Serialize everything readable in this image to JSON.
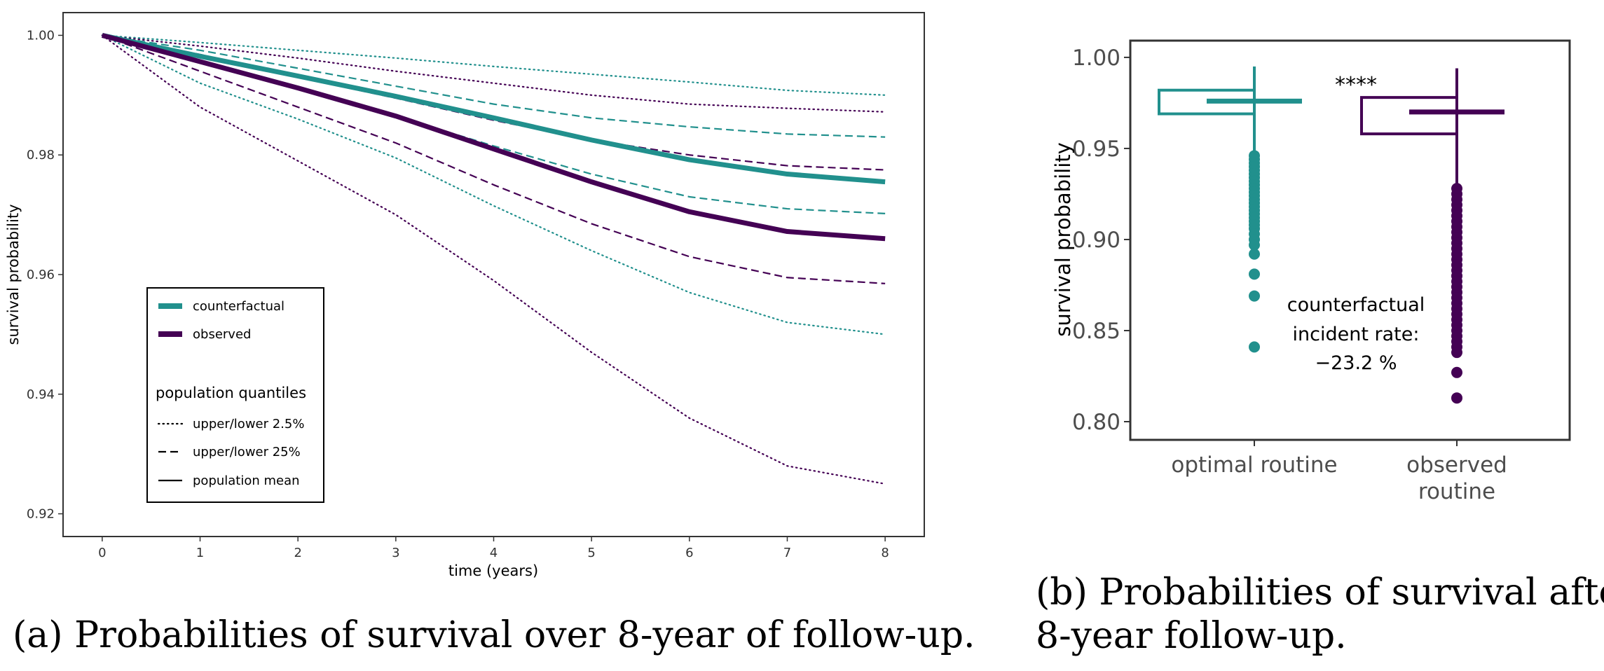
{
  "colors": {
    "counterfactual": "#21908d",
    "observed": "#440154",
    "frame": "#333333",
    "text": "#000000"
  },
  "panel_a": {
    "caption": "(a) Probabilities of survival over 8-year of follow-up.",
    "legend": {
      "series": [
        {
          "label": "counterfactual",
          "color": "#21908d"
        },
        {
          "label": "observed",
          "color": "#440154"
        }
      ],
      "quantiles_title": "population quantiles",
      "quantiles": [
        {
          "label": "upper/lower 2.5%",
          "style": "dotted"
        },
        {
          "label": "upper/lower 25%",
          "style": "dashed"
        },
        {
          "label": "population mean",
          "style": "solid"
        }
      ]
    }
  },
  "panel_b": {
    "caption_line1": "(b) Probabilities of survival after",
    "caption_line2": "8-year follow-up.",
    "significance": "****",
    "annotation": [
      "counterfactual",
      "incident rate:",
      "−23.2 %"
    ]
  },
  "chart_data": [
    {
      "type": "line",
      "title": "",
      "xlabel": "time (years)",
      "ylabel": "survival probability",
      "xlim": [
        -0.4,
        8.4
      ],
      "ylim": [
        0.9162,
        1.0038
      ],
      "x_ticks": [
        0,
        1,
        2,
        3,
        4,
        5,
        6,
        7,
        8
      ],
      "y_ticks": [
        0.92,
        0.94,
        0.96,
        0.98,
        1.0
      ],
      "y_tick_labels": [
        "0.92",
        "0.94",
        "0.96",
        "0.98",
        "1.00"
      ],
      "x": [
        0,
        1,
        2,
        3,
        4,
        5,
        6,
        7,
        8
      ],
      "series": [
        {
          "name": "counterfactual upper 2.5%",
          "group": "counterfactual",
          "style": "dotted",
          "values": [
            1.0,
            0.9988,
            0.9975,
            0.9962,
            0.9948,
            0.9935,
            0.9922,
            0.9908,
            0.99
          ]
        },
        {
          "name": "counterfactual upper 25%",
          "group": "counterfactual",
          "style": "dashed",
          "values": [
            1.0,
            0.9975,
            0.9945,
            0.9915,
            0.9885,
            0.9862,
            0.9847,
            0.9835,
            0.983
          ]
        },
        {
          "name": "counterfactual mean",
          "group": "counterfactual",
          "style": "solid",
          "values": [
            1.0,
            0.9965,
            0.9932,
            0.9898,
            0.9862,
            0.9825,
            0.9792,
            0.9768,
            0.9755
          ]
        },
        {
          "name": "counterfactual lower 25%",
          "group": "counterfactual",
          "style": "dashed",
          "values": [
            1.0,
            0.9955,
            0.9912,
            0.9865,
            0.9815,
            0.9768,
            0.973,
            0.971,
            0.9702
          ]
        },
        {
          "name": "counterfactual lower 2.5%",
          "group": "counterfactual",
          "style": "dotted",
          "values": [
            1.0,
            0.992,
            0.986,
            0.9795,
            0.9715,
            0.964,
            0.957,
            0.952,
            0.95
          ]
        },
        {
          "name": "observed upper 2.5%",
          "group": "observed",
          "style": "dotted",
          "values": [
            1.0,
            0.9982,
            0.9962,
            0.994,
            0.992,
            0.99,
            0.9885,
            0.9878,
            0.9872
          ]
        },
        {
          "name": "observed upper 25%",
          "group": "observed",
          "style": "dashed",
          "values": [
            1.0,
            0.9968,
            0.993,
            0.9895,
            0.9858,
            0.9825,
            0.98,
            0.9782,
            0.9775
          ]
        },
        {
          "name": "observed mean",
          "group": "observed",
          "style": "solid",
          "values": [
            1.0,
            0.9956,
            0.9912,
            0.9865,
            0.981,
            0.9755,
            0.9705,
            0.9672,
            0.966
          ]
        },
        {
          "name": "observed lower 25%",
          "group": "observed",
          "style": "dashed",
          "values": [
            1.0,
            0.994,
            0.988,
            0.982,
            0.975,
            0.9685,
            0.963,
            0.9595,
            0.9585
          ]
        },
        {
          "name": "observed lower 2.5%",
          "group": "observed",
          "style": "dotted",
          "values": [
            1.0,
            0.988,
            0.979,
            0.97,
            0.959,
            0.947,
            0.936,
            0.928,
            0.925
          ]
        }
      ]
    },
    {
      "type": "box",
      "title": "",
      "xlabel": "",
      "ylabel": "survival probability",
      "ylim": [
        0.79,
        1.0092
      ],
      "y_ticks": [
        0.8,
        0.85,
        0.9,
        0.95,
        1.0
      ],
      "y_tick_labels": [
        "0.80",
        "0.85",
        "0.90",
        "0.95",
        "1.00"
      ],
      "categories": [
        {
          "label_lines": [
            "optimal routine"
          ],
          "color": "#21908d"
        },
        {
          "label_lines": [
            "observed",
            "routine"
          ],
          "color": "#440154"
        }
      ],
      "boxes": [
        {
          "whisker_low": 0.948,
          "q1": 0.969,
          "median": 0.976,
          "q3": 0.982,
          "whisker_high": 0.995,
          "outliers": [
            0.946,
            0.944,
            0.942,
            0.94,
            0.938,
            0.936,
            0.934,
            0.932,
            0.93,
            0.928,
            0.926,
            0.924,
            0.922,
            0.92,
            0.918,
            0.916,
            0.914,
            0.912,
            0.91,
            0.908,
            0.906,
            0.903,
            0.9,
            0.897,
            0.892,
            0.881,
            0.869,
            0.841
          ]
        },
        {
          "whisker_low": 0.93,
          "q1": 0.958,
          "median": 0.97,
          "q3": 0.978,
          "whisker_high": 0.994,
          "outliers": [
            0.928,
            0.925,
            0.922,
            0.919,
            0.916,
            0.913,
            0.91,
            0.907,
            0.904,
            0.901,
            0.898,
            0.895,
            0.892,
            0.889,
            0.886,
            0.883,
            0.88,
            0.877,
            0.874,
            0.871,
            0.868,
            0.865,
            0.862,
            0.859,
            0.856,
            0.853,
            0.85,
            0.847,
            0.844,
            0.841,
            0.838,
            0.827,
            0.813
          ]
        }
      ]
    }
  ]
}
